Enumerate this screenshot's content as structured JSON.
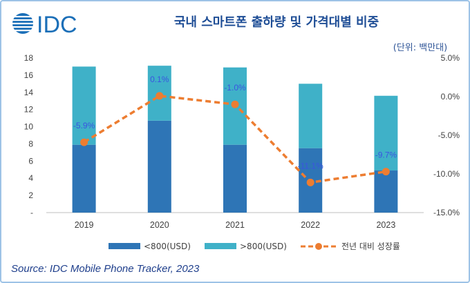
{
  "brand": {
    "name": "IDC"
  },
  "header": {
    "title": "국내 스마트폰 출하량 및 가격대별 비중",
    "unit": "(단위: 백만대)"
  },
  "source": "Source: IDC Mobile Phone Tracker, 2023",
  "colors": {
    "low": "#2e75b6",
    "high": "#3fb1c8",
    "growth": "#ed7d31",
    "label": "#3a54e0"
  },
  "chart_data": {
    "type": "bar",
    "stacked": true,
    "categories": [
      "2019",
      "2020",
      "2021",
      "2022",
      "2023"
    ],
    "series": [
      {
        "name": "<800(USD)",
        "type": "bar",
        "axis": "left",
        "values": [
          7.9,
          10.7,
          7.9,
          7.5,
          4.9
        ]
      },
      {
        "name": ">800(USD)",
        "type": "bar",
        "axis": "left",
        "values": [
          9.1,
          6.4,
          9.0,
          7.5,
          8.7
        ]
      },
      {
        "name": "전년 대비 성장률",
        "type": "line",
        "axis": "right",
        "values": [
          -5.9,
          0.1,
          -1.0,
          -11.1,
          -9.7
        ],
        "labels": [
          "-5.9%",
          "0.1%",
          "-1.0%",
          "-11.1%",
          "-9.7%"
        ]
      }
    ],
    "y_left": {
      "ticks": [
        "-",
        "2",
        "4",
        "6",
        "8",
        "10",
        "12",
        "14",
        "16",
        "18"
      ],
      "range": [
        0,
        18
      ]
    },
    "y_right": {
      "ticks": [
        "5.0%",
        "0.0%",
        "-5.0%",
        "-10.0%",
        "-15.0%"
      ],
      "range": [
        -15,
        5
      ]
    },
    "grid": false,
    "legend_position": "bottom"
  }
}
